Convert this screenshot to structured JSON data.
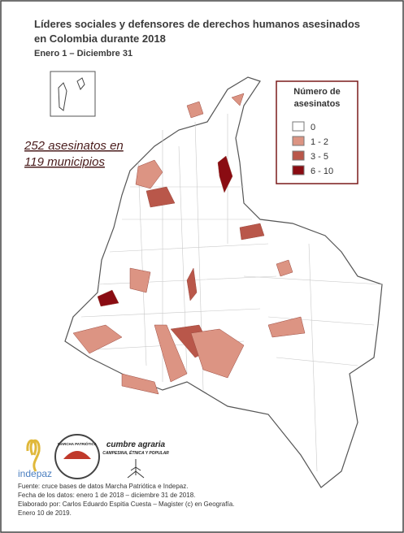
{
  "header": {
    "title_lines": [
      "Líderes sociales y defensores de derechos humanos asesinados",
      "en Colombia durante 2018"
    ],
    "subtitle": "Enero 1 – Diciembre 31"
  },
  "annotation": [
    "252 asesinatos en",
    "119 municipios"
  ],
  "legend": {
    "title_lines": [
      "Número de",
      "asesinatos"
    ],
    "items": [
      {
        "label": "0",
        "color": "#ffffff"
      },
      {
        "label": "1 - 2",
        "color": "#dc9483"
      },
      {
        "label": "3 - 5",
        "color": "#b9574a"
      },
      {
        "label": "6 - 10",
        "color": "#8a0c12"
      }
    ]
  },
  "logos": {
    "indepaz": "indepaz",
    "cumbre": "cumbre agraria",
    "cumbre_sub": "CAMPESINA, ÉTNICA Y POPULAR",
    "marcha": "MARCHA PATRIÓTICA"
  },
  "footer": [
    "Fuente: cruce bases de datos Marcha Patriótica e Indepaz.",
    "Fecha de los datos: enero 1 de 2018 – diciembre 31 de 2018.",
    "Elaborado por: Carlos Eduardo Espitia Cuesta – Magister (c) en Geografía.",
    "Enero 10 de 2019."
  ]
}
